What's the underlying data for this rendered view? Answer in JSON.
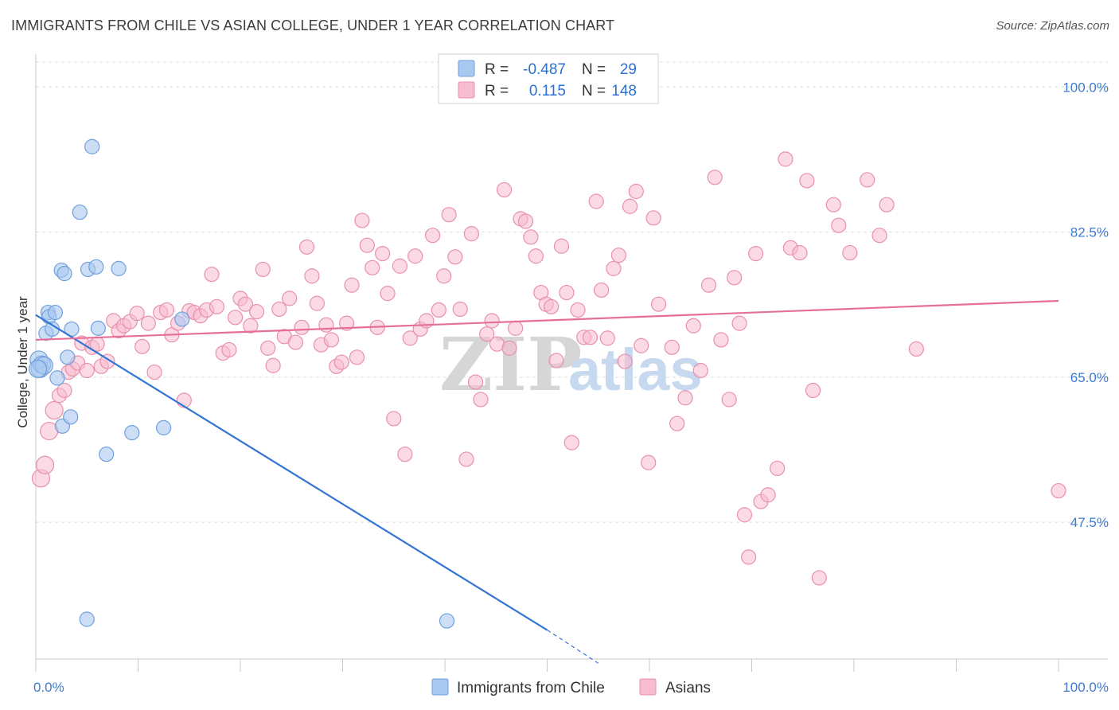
{
  "header": {
    "title": "IMMIGRANTS FROM CHILE VS ASIAN COLLEGE, UNDER 1 YEAR CORRELATION CHART",
    "source": "Source: ZipAtlas.com"
  },
  "legend_box": {
    "rows": [
      {
        "r_label": "R =",
        "r_value": "-0.487",
        "n_label": "N =",
        "n_value": "29"
      },
      {
        "r_label": "R =",
        "r_value": "0.115",
        "n_label": "N =",
        "n_value": "148"
      }
    ]
  },
  "watermark": {
    "zip": "ZIP",
    "atlas": "atlas"
  },
  "colors": {
    "chile_fill": "#a8c8f0",
    "chile_stroke": "#6f9fdc",
    "chile_line": "#3575d5",
    "asian_fill": "#f8bcd0",
    "asian_stroke": "#e890ac",
    "asian_line": "#e56f97",
    "tick_color": "#3f7bd0",
    "grid": "#dddddd"
  },
  "chart_data": {
    "type": "scatter",
    "title": "IMMIGRANTS FROM CHILE VS ASIAN COLLEGE, UNDER 1 YEAR CORRELATION CHART",
    "xlabel": "",
    "ylabel": "College, Under 1 year",
    "xlim": [
      0,
      100
    ],
    "ylim": [
      31,
      103
    ],
    "x_tick_labels": [
      "0.0%",
      "100.0%"
    ],
    "y_ticks": [
      100,
      82.5,
      65,
      47.5
    ],
    "y_tick_labels": [
      "100.0%",
      "82.5%",
      "65.0%",
      "47.5%"
    ],
    "grid": true,
    "legend_position": "top-center",
    "series": [
      {
        "name": "Immigrants from Chile",
        "r": -0.487,
        "n": 29,
        "trend": {
          "x": [
            0,
            50
          ],
          "y": [
            72.5,
            34.5
          ],
          "dashed_to": [
            55,
            30.5
          ]
        },
        "points": [
          [
            0.3,
            67.1
          ],
          [
            0.4,
            66.0
          ],
          [
            0.6,
            66.5
          ],
          [
            0.8,
            66.4
          ],
          [
            1.0,
            70.3
          ],
          [
            1.2,
            72.8
          ],
          [
            1.3,
            72.3
          ],
          [
            1.6,
            70.8
          ],
          [
            1.9,
            72.8
          ],
          [
            2.1,
            64.9
          ],
          [
            2.5,
            77.9
          ],
          [
            2.6,
            59.1
          ],
          [
            2.8,
            77.5
          ],
          [
            3.1,
            67.4
          ],
          [
            3.4,
            60.2
          ],
          [
            3.5,
            70.8
          ],
          [
            4.3,
            84.9
          ],
          [
            5.0,
            35.8
          ],
          [
            5.1,
            78.0
          ],
          [
            5.5,
            92.8
          ],
          [
            5.9,
            78.3
          ],
          [
            6.1,
            70.9
          ],
          [
            6.9,
            55.7
          ],
          [
            8.1,
            78.1
          ],
          [
            9.4,
            58.3
          ],
          [
            12.5,
            58.9
          ],
          [
            14.3,
            72.0
          ],
          [
            40.2,
            35.6
          ],
          [
            0.2,
            66.0
          ]
        ]
      },
      {
        "name": "Asians",
        "r": 0.115,
        "n": 148,
        "trend": {
          "x": [
            0,
            100
          ],
          "y": [
            69.5,
            74.2
          ]
        },
        "points": [
          [
            0.5,
            52.8
          ],
          [
            0.9,
            54.4
          ],
          [
            1.3,
            58.5
          ],
          [
            1.8,
            61.0
          ],
          [
            2.3,
            62.8
          ],
          [
            2.8,
            63.4
          ],
          [
            3.2,
            65.6
          ],
          [
            3.6,
            66.0
          ],
          [
            4.1,
            66.7
          ],
          [
            4.5,
            69.1
          ],
          [
            5.0,
            65.8
          ],
          [
            5.5,
            68.6
          ],
          [
            6.0,
            69.0
          ],
          [
            6.4,
            66.3
          ],
          [
            7.0,
            66.9
          ],
          [
            7.6,
            71.8
          ],
          [
            8.1,
            70.6
          ],
          [
            8.6,
            71.2
          ],
          [
            9.2,
            71.7
          ],
          [
            9.9,
            72.7
          ],
          [
            10.4,
            68.7
          ],
          [
            11.0,
            71.5
          ],
          [
            11.6,
            65.6
          ],
          [
            12.2,
            72.8
          ],
          [
            12.8,
            73.1
          ],
          [
            13.3,
            70.1
          ],
          [
            13.9,
            71.5
          ],
          [
            14.5,
            62.2
          ],
          [
            15.0,
            73.0
          ],
          [
            15.5,
            72.8
          ],
          [
            16.1,
            72.4
          ],
          [
            16.7,
            73.1
          ],
          [
            17.2,
            77.4
          ],
          [
            17.7,
            73.5
          ],
          [
            18.3,
            67.9
          ],
          [
            18.9,
            68.3
          ],
          [
            19.5,
            72.2
          ],
          [
            20.0,
            74.5
          ],
          [
            20.5,
            73.8
          ],
          [
            21.0,
            71.2
          ],
          [
            21.6,
            72.9
          ],
          [
            22.2,
            78.0
          ],
          [
            22.7,
            68.5
          ],
          [
            23.2,
            66.4
          ],
          [
            23.8,
            73.2
          ],
          [
            24.3,
            69.9
          ],
          [
            24.8,
            74.5
          ],
          [
            25.4,
            69.2
          ],
          [
            26.0,
            71.0
          ],
          [
            26.5,
            80.7
          ],
          [
            27.0,
            77.2
          ],
          [
            27.5,
            73.9
          ],
          [
            27.9,
            68.9
          ],
          [
            28.4,
            71.3
          ],
          [
            28.9,
            69.5
          ],
          [
            29.4,
            66.3
          ],
          [
            29.9,
            66.8
          ],
          [
            30.4,
            71.5
          ],
          [
            30.9,
            76.1
          ],
          [
            31.4,
            67.4
          ],
          [
            31.9,
            83.9
          ],
          [
            32.4,
            80.9
          ],
          [
            32.9,
            78.2
          ],
          [
            33.4,
            71.0
          ],
          [
            33.9,
            79.9
          ],
          [
            34.4,
            75.1
          ],
          [
            35.0,
            60.0
          ],
          [
            35.6,
            78.4
          ],
          [
            36.1,
            55.7
          ],
          [
            36.6,
            69.7
          ],
          [
            37.1,
            79.6
          ],
          [
            37.6,
            70.8
          ],
          [
            38.2,
            71.8
          ],
          [
            38.8,
            82.1
          ],
          [
            39.4,
            73.1
          ],
          [
            39.9,
            77.2
          ],
          [
            40.4,
            84.6
          ],
          [
            41.0,
            79.5
          ],
          [
            41.5,
            73.2
          ],
          [
            42.1,
            55.1
          ],
          [
            42.6,
            82.3
          ],
          [
            43.0,
            64.4
          ],
          [
            43.5,
            62.3
          ],
          [
            44.1,
            70.2
          ],
          [
            44.6,
            71.8
          ],
          [
            45.1,
            69.0
          ],
          [
            45.8,
            87.6
          ],
          [
            46.3,
            68.5
          ],
          [
            46.9,
            70.9
          ],
          [
            47.4,
            84.1
          ],
          [
            47.9,
            83.8
          ],
          [
            48.4,
            81.9
          ],
          [
            48.9,
            79.6
          ],
          [
            49.4,
            75.2
          ],
          [
            49.9,
            73.8
          ],
          [
            50.4,
            73.5
          ],
          [
            50.9,
            67.0
          ],
          [
            51.4,
            80.8
          ],
          [
            51.9,
            75.2
          ],
          [
            52.4,
            57.1
          ],
          [
            53.0,
            73.1
          ],
          [
            53.6,
            69.8
          ],
          [
            54.2,
            69.8
          ],
          [
            54.8,
            86.2
          ],
          [
            55.3,
            75.5
          ],
          [
            55.9,
            69.7
          ],
          [
            56.5,
            78.1
          ],
          [
            57.0,
            79.7
          ],
          [
            57.6,
            66.9
          ],
          [
            58.1,
            85.6
          ],
          [
            58.7,
            87.4
          ],
          [
            59.2,
            68.8
          ],
          [
            59.9,
            54.7
          ],
          [
            60.4,
            84.2
          ],
          [
            60.9,
            73.8
          ],
          [
            62.2,
            68.6
          ],
          [
            62.7,
            59.4
          ],
          [
            63.5,
            62.5
          ],
          [
            64.3,
            71.2
          ],
          [
            65.0,
            65.8
          ],
          [
            65.8,
            76.1
          ],
          [
            66.4,
            89.1
          ],
          [
            67.0,
            69.5
          ],
          [
            67.8,
            62.3
          ],
          [
            68.3,
            77.0
          ],
          [
            68.8,
            71.5
          ],
          [
            69.3,
            48.4
          ],
          [
            69.7,
            43.3
          ],
          [
            70.4,
            79.9
          ],
          [
            70.9,
            50.0
          ],
          [
            71.6,
            50.8
          ],
          [
            72.5,
            54.0
          ],
          [
            73.3,
            91.3
          ],
          [
            73.8,
            80.6
          ],
          [
            74.7,
            80.0
          ],
          [
            75.4,
            88.7
          ],
          [
            76.0,
            63.4
          ],
          [
            76.6,
            40.8
          ],
          [
            78.0,
            85.8
          ],
          [
            78.5,
            83.3
          ],
          [
            79.6,
            80.0
          ],
          [
            81.3,
            88.8
          ],
          [
            82.5,
            82.1
          ],
          [
            83.2,
            85.8
          ],
          [
            86.1,
            68.4
          ],
          [
            100.0,
            51.3
          ]
        ]
      }
    ]
  },
  "bottom_legend": [
    {
      "label": "Immigrants from Chile"
    },
    {
      "label": "Asians"
    }
  ]
}
